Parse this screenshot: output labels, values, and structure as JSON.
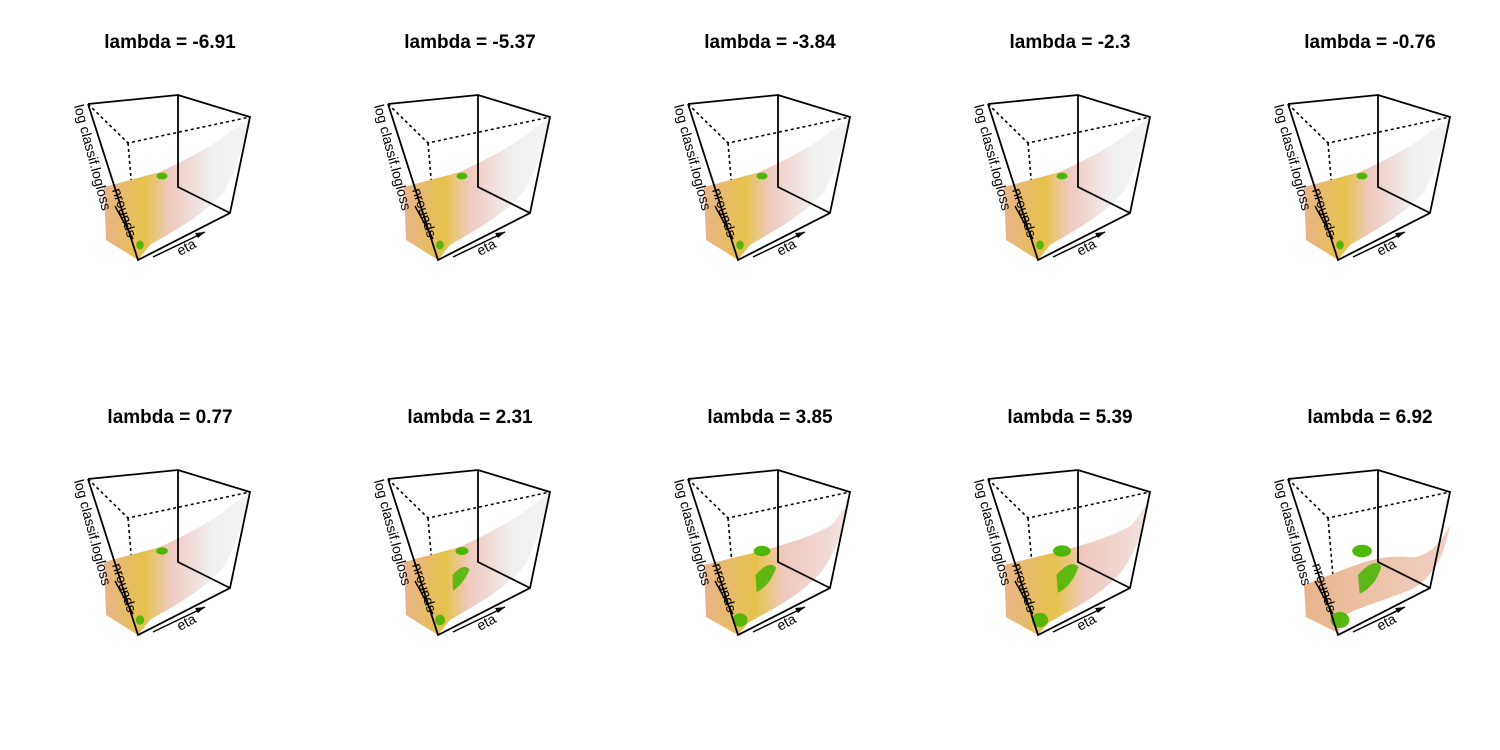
{
  "chart_data": [
    {
      "type": "surface",
      "title": "lambda = -6.91",
      "lambda": -6.91,
      "zlabel": "log classif.logloss",
      "xlabel": "eta",
      "ylabel": "nrounds",
      "green_level": 0.1
    },
    {
      "type": "surface",
      "title": "lambda = -5.37",
      "lambda": -5.37,
      "zlabel": "log classif.logloss",
      "xlabel": "eta",
      "ylabel": "nrounds",
      "green_level": 0.1
    },
    {
      "type": "surface",
      "title": "lambda = -3.84",
      "lambda": -3.84,
      "zlabel": "log classif.logloss",
      "xlabel": "eta",
      "ylabel": "nrounds",
      "green_level": 0.1
    },
    {
      "type": "surface",
      "title": "lambda = -2.3",
      "lambda": -2.3,
      "zlabel": "log classif.logloss",
      "xlabel": "eta",
      "ylabel": "nrounds",
      "green_level": 0.1
    },
    {
      "type": "surface",
      "title": "lambda = -0.76",
      "lambda": -0.76,
      "zlabel": "log classif.logloss",
      "xlabel": "eta",
      "ylabel": "nrounds",
      "green_level": 0.1
    },
    {
      "type": "surface",
      "title": "lambda = 0.77",
      "lambda": 0.77,
      "zlabel": "log classif.logloss",
      "xlabel": "eta",
      "ylabel": "nrounds",
      "green_level": 0.15
    },
    {
      "type": "surface",
      "title": "lambda = 2.31",
      "lambda": 2.31,
      "zlabel": "log classif.logloss",
      "xlabel": "eta",
      "ylabel": "nrounds",
      "green_level": 0.25
    },
    {
      "type": "surface",
      "title": "lambda = 3.85",
      "lambda": 3.85,
      "zlabel": "log classif.logloss",
      "xlabel": "eta",
      "ylabel": "nrounds",
      "green_level": 0.55
    },
    {
      "type": "surface",
      "title": "lambda = 5.39",
      "lambda": 5.39,
      "zlabel": "log classif.logloss",
      "xlabel": "eta",
      "ylabel": "nrounds",
      "green_level": 0.65
    },
    {
      "type": "surface",
      "title": "lambda = 6.92",
      "lambda": 6.92,
      "zlabel": "log classif.logloss",
      "xlabel": "eta",
      "ylabel": "nrounds",
      "green_level": 0.8
    }
  ],
  "colors": {
    "axis": "#000000",
    "surface_light": "#F0F0F0",
    "surface_pink": "#EFC9C0",
    "surface_orange": "#E9B48A",
    "surface_yellow": "#E6C24A",
    "surface_green": "#46B400"
  }
}
